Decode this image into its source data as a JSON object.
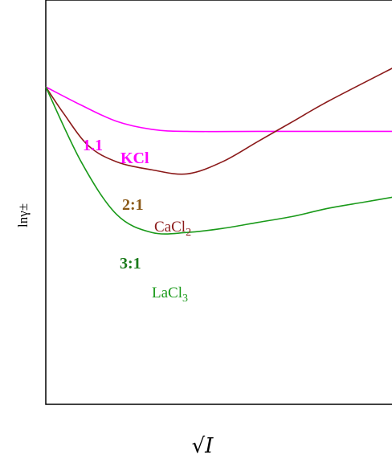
{
  "chart_data": {
    "type": "line",
    "title": "",
    "xlabel": "√I",
    "ylabel": "lnγ±",
    "grid": false,
    "legend": "none",
    "series": [
      {
        "name": "KCl",
        "ratio_label": "1.1",
        "color": "#ff00ff",
        "points": [
          [
            0,
            0.785
          ],
          [
            0.1,
            0.74
          ],
          [
            0.2,
            0.7
          ],
          [
            0.3,
            0.68
          ],
          [
            0.4,
            0.675
          ],
          [
            0.6,
            0.675
          ],
          [
            0.8,
            0.675
          ],
          [
            1.0,
            0.675
          ]
        ]
      },
      {
        "name": "CaCl2",
        "ratio_label": "2:1",
        "color": "#8b1a1a",
        "points": [
          [
            0,
            0.785
          ],
          [
            0.05,
            0.72
          ],
          [
            0.12,
            0.64
          ],
          [
            0.2,
            0.6
          ],
          [
            0.3,
            0.58
          ],
          [
            0.4,
            0.57
          ],
          [
            0.5,
            0.6
          ],
          [
            0.6,
            0.65
          ],
          [
            0.7,
            0.7
          ],
          [
            0.8,
            0.75
          ],
          [
            1.0,
            0.84
          ]
        ]
      },
      {
        "name": "LaCl3",
        "ratio_label": "3:1",
        "color": "#1a9a1a",
        "points": [
          [
            0,
            0.785
          ],
          [
            0.1,
            0.6
          ],
          [
            0.2,
            0.47
          ],
          [
            0.3,
            0.425
          ],
          [
            0.4,
            0.425
          ],
          [
            0.5,
            0.435
          ],
          [
            0.6,
            0.45
          ],
          [
            0.7,
            0.465
          ],
          [
            0.8,
            0.485
          ],
          [
            0.9,
            0.5
          ],
          [
            1.0,
            0.515
          ]
        ]
      }
    ],
    "annotations": [
      {
        "text": "1.1",
        "color": "#ff00ff"
      },
      {
        "text": "KCl",
        "color": "#ff00ff"
      },
      {
        "text": "2:1",
        "color": "#8b5a1a"
      },
      {
        "text": "CaCl",
        "sub": "2",
        "color": "#8b1a1a"
      },
      {
        "text": "3:1",
        "color": "#1a7a1a"
      },
      {
        "text": "LaCl",
        "sub": "3",
        "color": "#1a9a1a"
      }
    ],
    "xlim": [
      0,
      1.0
    ],
    "ylim": [
      0,
      1.0
    ]
  }
}
